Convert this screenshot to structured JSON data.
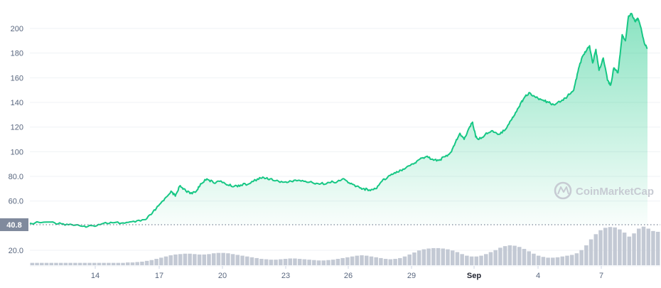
{
  "chart_data": {
    "type": "area",
    "y_ticks": [
      "20.0",
      "60.0",
      "80.0",
      "100",
      "120",
      "140",
      "160",
      "180",
      "200"
    ],
    "ylim": [
      0,
      220
    ],
    "x_ticks": [
      "14",
      "17",
      "20",
      "23",
      "26",
      "29",
      "Sep",
      "4",
      "7"
    ],
    "baseline_value": 40.8,
    "baseline_label": "40.8",
    "colors": {
      "line": "#16c784",
      "fill_top": "#16c784",
      "volume": "#c3c9d4",
      "baseline_label_bg": "#808a9d"
    },
    "series": [
      {
        "values": [
          [
            0.0,
            42
          ],
          [
            1.0,
            43
          ],
          [
            1.5,
            41.5
          ],
          [
            2.0,
            40.8
          ],
          [
            2.5,
            39.5
          ],
          [
            3.0,
            40
          ],
          [
            3.5,
            42
          ],
          [
            4.0,
            42.5
          ],
          [
            4.5,
            42
          ],
          [
            5.0,
            43
          ],
          [
            5.5,
            45
          ],
          [
            5.8,
            50
          ],
          [
            6.1,
            56
          ],
          [
            6.4,
            62
          ],
          [
            6.7,
            68
          ],
          [
            6.9,
            64
          ],
          [
            7.1,
            72
          ],
          [
            7.3,
            70
          ],
          [
            7.6,
            66
          ],
          [
            7.9,
            68
          ],
          [
            8.1,
            74
          ],
          [
            8.4,
            78
          ],
          [
            8.7,
            75
          ],
          [
            9.0,
            76
          ],
          [
            9.4,
            73
          ],
          [
            9.7,
            72
          ],
          [
            10.0,
            73
          ],
          [
            10.4,
            74
          ],
          [
            10.8,
            78
          ],
          [
            11.1,
            79
          ],
          [
            11.4,
            78
          ],
          [
            11.8,
            76
          ],
          [
            12.2,
            75
          ],
          [
            12.6,
            77
          ],
          [
            13.0,
            76
          ],
          [
            13.4,
            75
          ],
          [
            13.8,
            74
          ],
          [
            14.2,
            75
          ],
          [
            14.6,
            76
          ],
          [
            14.9,
            78
          ],
          [
            15.2,
            74
          ],
          [
            15.5,
            72
          ],
          [
            15.8,
            70
          ],
          [
            16.1,
            69
          ],
          [
            16.4,
            70
          ],
          [
            16.7,
            76
          ],
          [
            17.0,
            80
          ],
          [
            17.3,
            83
          ],
          [
            17.6,
            85
          ],
          [
            17.9,
            88
          ],
          [
            18.2,
            90
          ],
          [
            18.5,
            94
          ],
          [
            18.8,
            96
          ],
          [
            19.1,
            94
          ],
          [
            19.4,
            93
          ],
          [
            19.7,
            96
          ],
          [
            20.0,
            100
          ],
          [
            20.2,
            108
          ],
          [
            20.4,
            115
          ],
          [
            20.6,
            110
          ],
          [
            20.8,
            118
          ],
          [
            21.0,
            124
          ],
          [
            21.15,
            112
          ],
          [
            21.3,
            110
          ],
          [
            21.6,
            114
          ],
          [
            21.9,
            117
          ],
          [
            22.2,
            114
          ],
          [
            22.5,
            117
          ],
          [
            22.7,
            122
          ],
          [
            22.9,
            128
          ],
          [
            23.1,
            133
          ],
          [
            23.3,
            140
          ],
          [
            23.5,
            145
          ],
          [
            23.7,
            148
          ],
          [
            24.0,
            144
          ],
          [
            24.3,
            142
          ],
          [
            24.6,
            140
          ],
          [
            24.9,
            138
          ],
          [
            25.2,
            141
          ],
          [
            25.5,
            145
          ],
          [
            25.8,
            150
          ],
          [
            26.0,
            165
          ],
          [
            26.2,
            177
          ],
          [
            26.4,
            182
          ],
          [
            26.55,
            186
          ],
          [
            26.7,
            172
          ],
          [
            26.85,
            183
          ],
          [
            27.0,
            166
          ],
          [
            27.2,
            176
          ],
          [
            27.4,
            158
          ],
          [
            27.55,
            154
          ],
          [
            27.7,
            168
          ],
          [
            27.9,
            164
          ],
          [
            28.1,
            195
          ],
          [
            28.25,
            190
          ],
          [
            28.4,
            210
          ],
          [
            28.55,
            212
          ],
          [
            28.7,
            206
          ],
          [
            28.85,
            208
          ],
          [
            29.0,
            200
          ],
          [
            29.15,
            188
          ],
          [
            29.3,
            184
          ]
        ]
      }
    ],
    "volume": [
      0.06,
      0.06,
      0.06,
      0.06,
      0.06,
      0.06,
      0.06,
      0.06,
      0.06,
      0.06,
      0.06,
      0.06,
      0.06,
      0.06,
      0.06,
      0.06,
      0.06,
      0.06,
      0.06,
      0.06,
      0.07,
      0.07,
      0.08,
      0.09,
      0.11,
      0.13,
      0.16,
      0.19,
      0.22,
      0.25,
      0.27,
      0.28,
      0.29,
      0.29,
      0.28,
      0.27,
      0.27,
      0.28,
      0.3,
      0.31,
      0.31,
      0.3,
      0.28,
      0.26,
      0.24,
      0.22,
      0.2,
      0.18,
      0.16,
      0.15,
      0.14,
      0.14,
      0.15,
      0.16,
      0.17,
      0.17,
      0.16,
      0.15,
      0.14,
      0.13,
      0.12,
      0.12,
      0.13,
      0.14,
      0.16,
      0.18,
      0.2,
      0.22,
      0.24,
      0.25,
      0.24,
      0.22,
      0.2,
      0.18,
      0.16,
      0.15,
      0.16,
      0.18,
      0.22,
      0.27,
      0.32,
      0.37,
      0.4,
      0.42,
      0.43,
      0.43,
      0.42,
      0.4,
      0.37,
      0.33,
      0.28,
      0.24,
      0.22,
      0.22,
      0.24,
      0.28,
      0.33,
      0.38,
      0.44,
      0.48,
      0.5,
      0.49,
      0.46,
      0.41,
      0.35,
      0.29,
      0.24,
      0.21,
      0.19,
      0.19,
      0.2,
      0.22,
      0.24,
      0.26,
      0.3,
      0.38,
      0.5,
      0.65,
      0.78,
      0.88,
      0.94,
      0.96,
      0.95,
      0.9,
      0.82,
      0.72,
      0.8,
      0.92,
      0.97,
      0.92,
      0.86,
      0.84
    ]
  }
}
